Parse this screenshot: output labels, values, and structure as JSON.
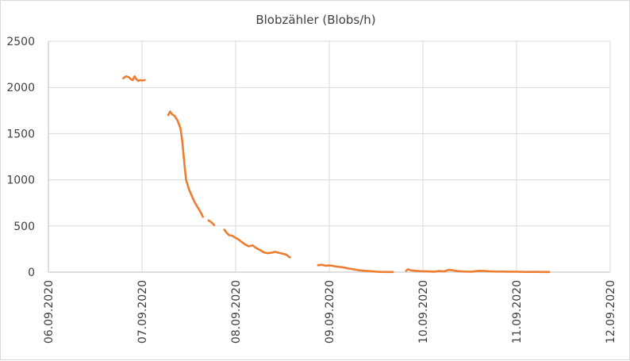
{
  "chart_data": {
    "type": "line",
    "title": "Blobzähler (Blobs/h)",
    "xlabel": "",
    "ylabel": "",
    "x_tick_labels": [
      "06.09.2020",
      "07.09.2020",
      "08.09.2020",
      "09.09.2020",
      "10.09.2020",
      "11.09.2020",
      "12.09.2020"
    ],
    "y_tick_labels": [
      "0",
      "500",
      "1000",
      "1500",
      "2000",
      "2500"
    ],
    "xlim_days": [
      0,
      6
    ],
    "ylim": [
      0,
      2500
    ],
    "grid": true,
    "legend": false,
    "colors": {
      "series": "#ed7d31",
      "grid": "#d9d9d9",
      "text": "#404040"
    },
    "series": [
      {
        "segments": [
          [
            [
              0.8,
              2100
            ],
            [
              0.83,
              2120
            ],
            [
              0.86,
              2110
            ],
            [
              0.88,
              2090
            ],
            [
              0.9,
              2080
            ],
            [
              0.92,
              2120
            ],
            [
              0.94,
              2090
            ],
            [
              0.96,
              2070
            ],
            [
              0.98,
              2080
            ],
            [
              1.0,
              2075
            ],
            [
              1.03,
              2080
            ]
          ],
          [
            [
              1.28,
              1700
            ],
            [
              1.3,
              1740
            ],
            [
              1.32,
              1710
            ],
            [
              1.35,
              1690
            ],
            [
              1.38,
              1640
            ],
            [
              1.41,
              1560
            ],
            [
              1.43,
              1420
            ],
            [
              1.45,
              1200
            ],
            [
              1.47,
              1000
            ],
            [
              1.5,
              900
            ],
            [
              1.53,
              830
            ],
            [
              1.56,
              760
            ],
            [
              1.59,
              710
            ],
            [
              1.62,
              660
            ],
            [
              1.65,
              600
            ]
          ],
          [
            [
              1.71,
              560
            ],
            [
              1.74,
              540
            ],
            [
              1.77,
              510
            ]
          ],
          [
            [
              1.88,
              460
            ],
            [
              1.9,
              430
            ],
            [
              1.93,
              400
            ],
            [
              1.96,
              395
            ],
            [
              2.0,
              370
            ],
            [
              2.03,
              355
            ],
            [
              2.06,
              330
            ],
            [
              2.1,
              300
            ],
            [
              2.14,
              280
            ],
            [
              2.18,
              290
            ],
            [
              2.22,
              260
            ],
            [
              2.26,
              240
            ],
            [
              2.3,
              215
            ],
            [
              2.34,
              205
            ],
            [
              2.38,
              210
            ],
            [
              2.42,
              220
            ],
            [
              2.46,
              210
            ],
            [
              2.5,
              200
            ],
            [
              2.54,
              190
            ],
            [
              2.58,
              160
            ]
          ],
          [
            [
              2.88,
              75
            ],
            [
              2.92,
              80
            ],
            [
              2.96,
              70
            ],
            [
              3.0,
              72
            ],
            [
              3.04,
              68
            ],
            [
              3.08,
              60
            ],
            [
              3.12,
              55
            ],
            [
              3.16,
              50
            ],
            [
              3.2,
              40
            ],
            [
              3.26,
              30
            ],
            [
              3.32,
              20
            ],
            [
              3.38,
              15
            ],
            [
              3.44,
              10
            ],
            [
              3.5,
              5
            ],
            [
              3.56,
              3
            ],
            [
              3.62,
              2
            ],
            [
              3.68,
              2
            ]
          ],
          [
            [
              3.82,
              15
            ],
            [
              3.84,
              30
            ],
            [
              3.87,
              20
            ],
            [
              3.92,
              15
            ],
            [
              3.98,
              10
            ],
            [
              4.05,
              8
            ],
            [
              4.12,
              5
            ],
            [
              4.18,
              12
            ],
            [
              4.22,
              8
            ],
            [
              4.28,
              25
            ],
            [
              4.32,
              20
            ],
            [
              4.38,
              10
            ],
            [
              4.45,
              6
            ],
            [
              4.52,
              5
            ],
            [
              4.6,
              15
            ],
            [
              4.66,
              12
            ],
            [
              4.72,
              8
            ],
            [
              4.8,
              6
            ],
            [
              4.9,
              5
            ],
            [
              5.0,
              4
            ],
            [
              5.1,
              3
            ],
            [
              5.2,
              3
            ],
            [
              5.3,
              2
            ],
            [
              5.35,
              2
            ]
          ]
        ]
      }
    ]
  }
}
